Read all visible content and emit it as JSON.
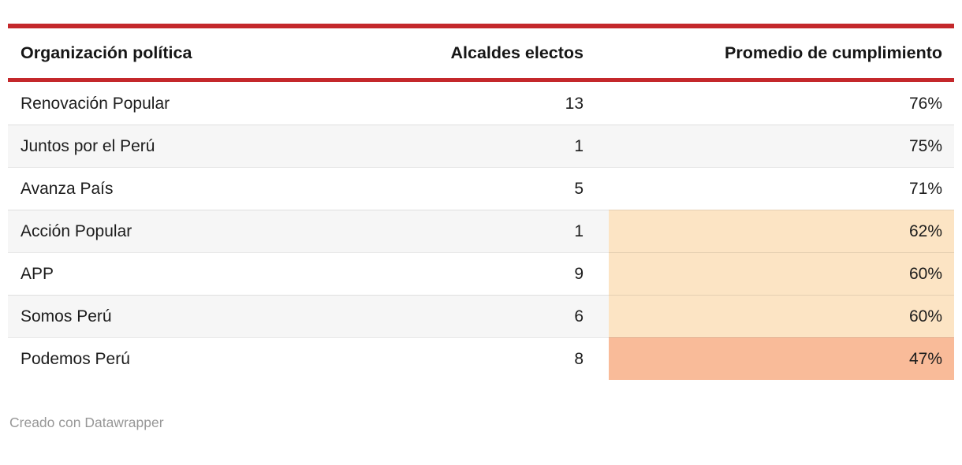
{
  "chart_data": {
    "type": "table",
    "title": "",
    "columns": [
      "Organización política",
      "Alcaldes electos",
      "Promedio de cumplimiento"
    ],
    "rows": [
      [
        "Renovación Popular",
        13,
        "76%"
      ],
      [
        "Juntos por el Perú",
        1,
        "75%"
      ],
      [
        "Avanza País",
        5,
        "71%"
      ],
      [
        "Acción Popular",
        1,
        "62%"
      ],
      [
        "APP",
        9,
        "60%"
      ],
      [
        "Somos Perú",
        6,
        "60%"
      ],
      [
        "Podemos Perú",
        8,
        "47%"
      ]
    ],
    "layout_hints": "right column heat-colored: 62%/60%/60% light peach, 47% salmon; zebra striping on alternate rows; red rules above and below header"
  },
  "table": {
    "columns": [
      {
        "label": "Organización política"
      },
      {
        "label": "Alcaldes electos"
      },
      {
        "label": "Promedio de cumplimiento"
      }
    ],
    "rows": [
      {
        "organizacion": "Renovación Popular",
        "alcaldes": "13",
        "promedio": "76%",
        "promedio_highlight": "none"
      },
      {
        "organizacion": "Juntos por el Perú",
        "alcaldes": "1",
        "promedio": "75%",
        "promedio_highlight": "none"
      },
      {
        "organizacion": "Avanza País",
        "alcaldes": "5",
        "promedio": "71%",
        "promedio_highlight": "none"
      },
      {
        "organizacion": "Acción Popular",
        "alcaldes": "1",
        "promedio": "62%",
        "promedio_highlight": "peach"
      },
      {
        "organizacion": "APP",
        "alcaldes": "9",
        "promedio": "60%",
        "promedio_highlight": "peach"
      },
      {
        "organizacion": "Somos Perú",
        "alcaldes": "6",
        "promedio": "60%",
        "promedio_highlight": "peach"
      },
      {
        "organizacion": "Podemos Perú",
        "alcaldes": "8",
        "promedio": "47%",
        "promedio_highlight": "salmon"
      }
    ]
  },
  "footer": {
    "attribution": "Creado con Datawrapper"
  },
  "colors": {
    "accent_red": "#c4282b",
    "highlight_peach": "#fce4c4",
    "highlight_salmon": "#f9bb99",
    "zebra_row": "#f6f6f6",
    "text": "#1c1c1c",
    "attribution_text": "#979797"
  }
}
